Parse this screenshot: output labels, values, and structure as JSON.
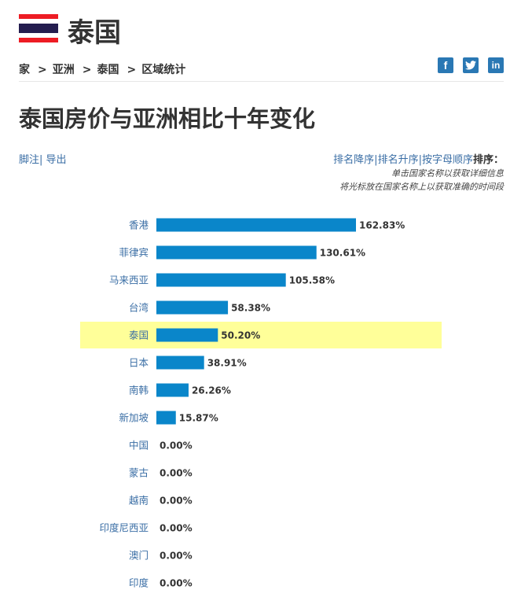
{
  "header": {
    "country": "泰国",
    "flag_colors": [
      "#ED1C24",
      "#FFFFFF",
      "#241D4F",
      "#FFFFFF",
      "#ED1C24"
    ]
  },
  "breadcrumb": {
    "items": [
      "家",
      "亚洲",
      "泰国",
      "区域统计"
    ],
    "separator": ">"
  },
  "social": {
    "icons": [
      "facebook-icon",
      "twitter-icon",
      "linkedin-icon"
    ],
    "color": "#2A78B4"
  },
  "page_title": "泰国房价与亚洲相比十年变化",
  "links": {
    "footnote": "脚注",
    "export": "导出",
    "sort_desc": "排名降序",
    "sort_asc": "排名升序",
    "sort_alpha": "按字母顺序",
    "sort_label": "排序："
  },
  "hints": {
    "line1": "单击国家名称以获取详细信息",
    "line2": "将光标放在国家名称上以获取准确的时间段"
  },
  "colors": {
    "bar": "#0A86CA",
    "highlight": "#FFFF99",
    "link": "#3A6EA5"
  },
  "chart_data": {
    "type": "bar",
    "orientation": "horizontal",
    "categories": [
      "香港",
      "菲律宾",
      "马来西亚",
      "台湾",
      "泰国",
      "日本",
      "南韩",
      "新加坡",
      "中国",
      "蒙古",
      "越南",
      "印度尼西亚",
      "澳门",
      "印度"
    ],
    "values": [
      162.83,
      130.61,
      105.58,
      58.38,
      50.2,
      38.91,
      26.26,
      15.87,
      0.0,
      0.0,
      0.0,
      0.0,
      0.0,
      0.0
    ],
    "value_labels": [
      "162.83%",
      "130.61%",
      "105.58%",
      "58.38%",
      "50.20%",
      "38.91%",
      "26.26%",
      "15.87%",
      "0.00%",
      "0.00%",
      "0.00%",
      "0.00%",
      "0.00%",
      "0.00%"
    ],
    "highlight_category": "泰国",
    "unit": "%"
  }
}
